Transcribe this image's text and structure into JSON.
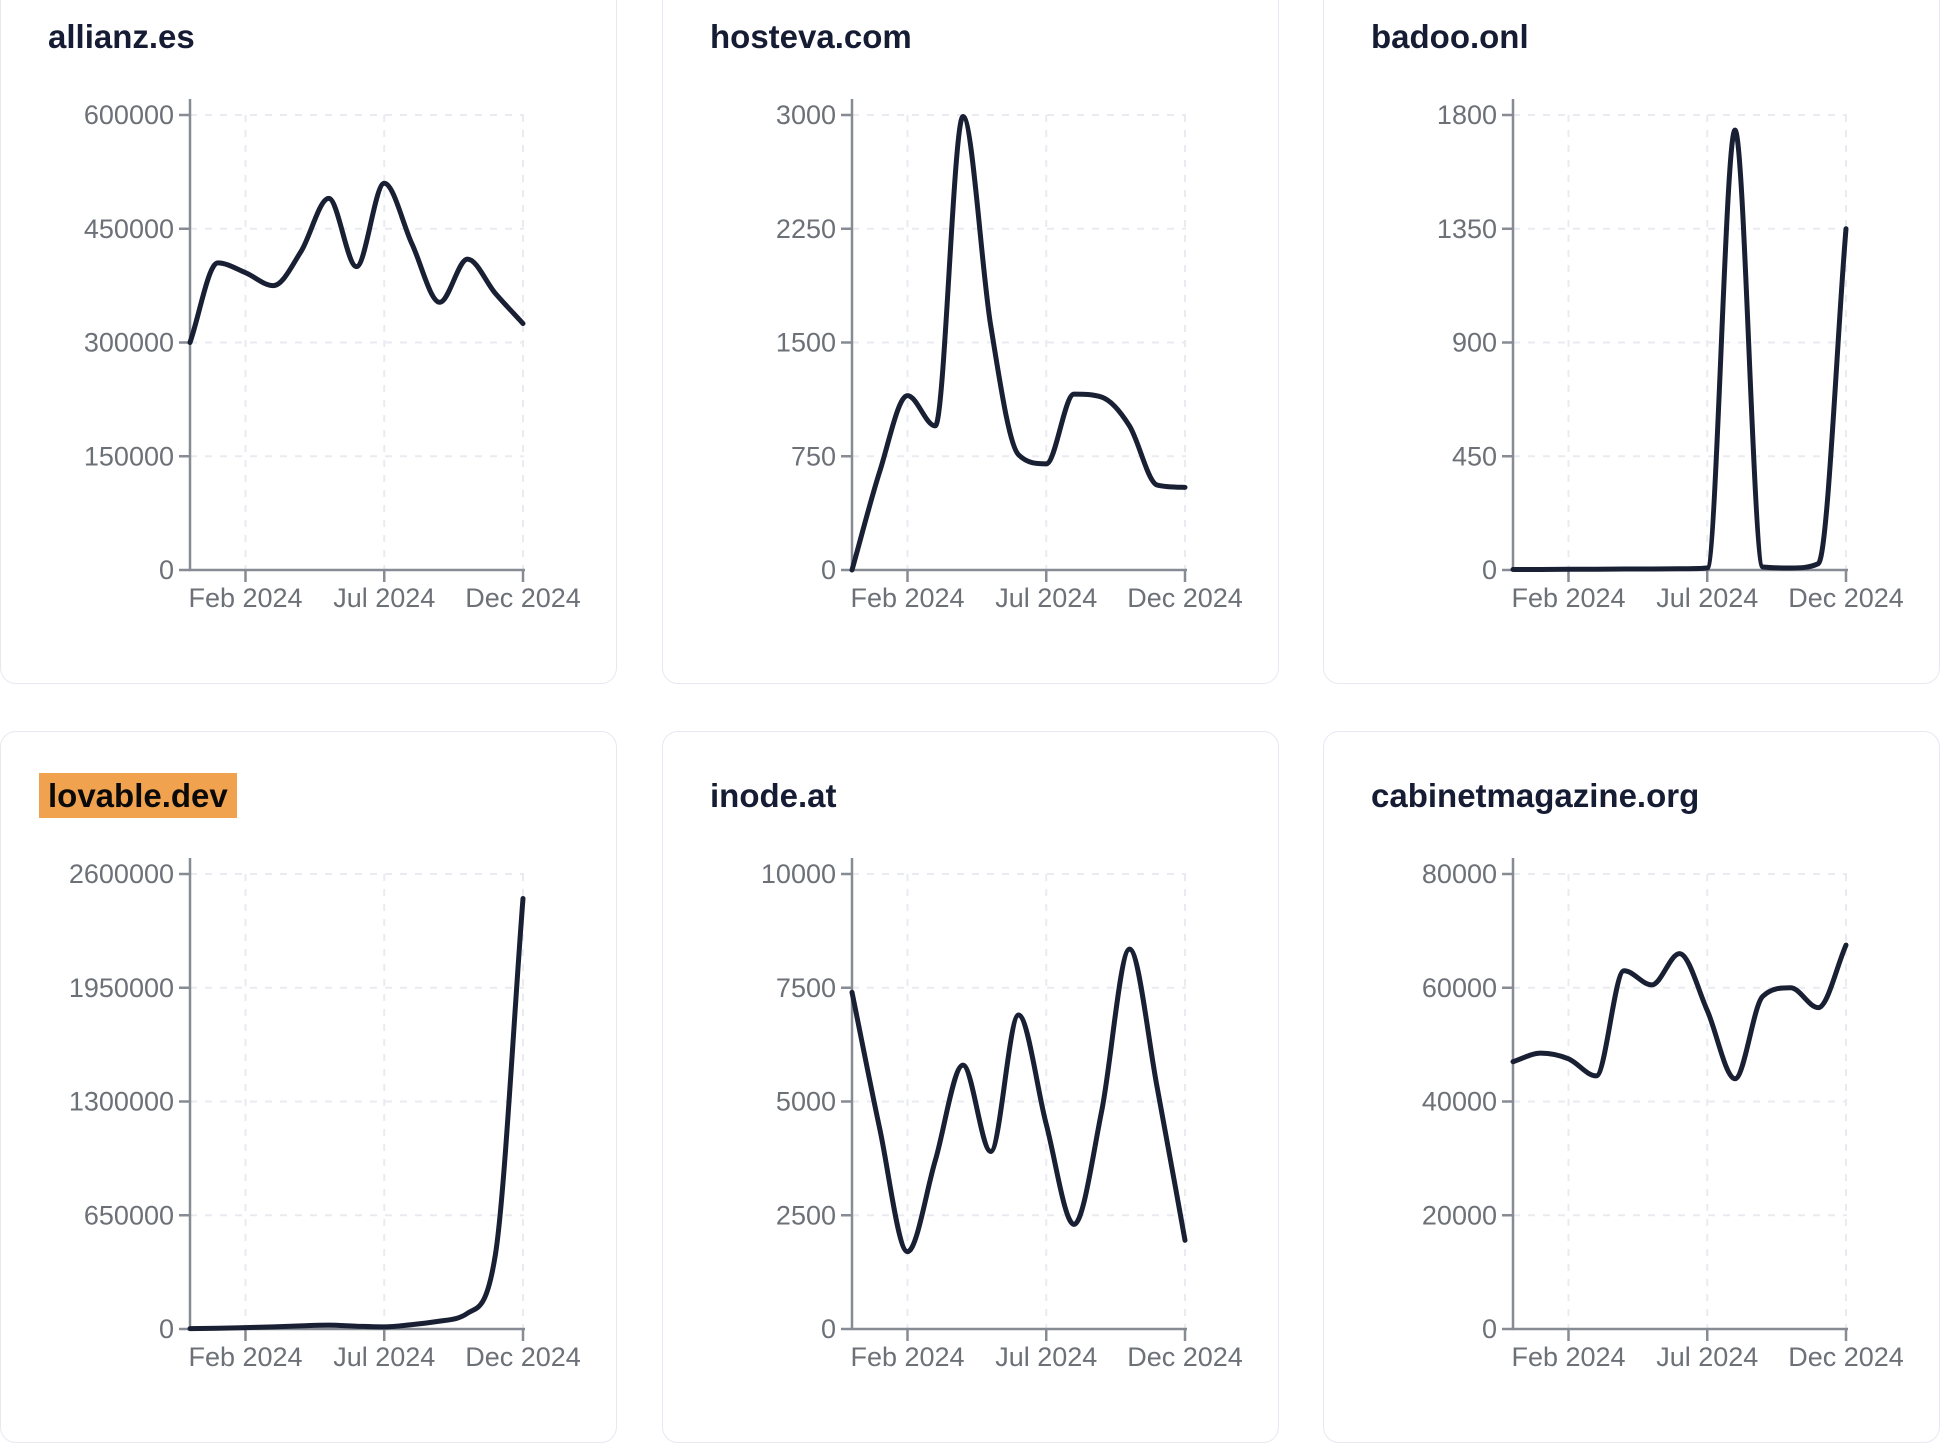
{
  "page": {
    "background": "#ffffff"
  },
  "theme": {
    "line_color": "#1a2033",
    "title_color": "#151c33",
    "tick_label_color": "#6c7077",
    "axis_color": "#878b93",
    "grid_color": "#e9ebf1",
    "card_border_color": "#e7e9f2",
    "highlight_color": "#f0a24e",
    "highlight_text_color": "#0a0a0a"
  },
  "x_axis": {
    "tick_labels": [
      "Feb 2024",
      "Jul 2024",
      "Dec 2024"
    ],
    "tick_month_indices": [
      2,
      7,
      12
    ]
  },
  "x_months": [
    "Dec 2023",
    "Jan 2024",
    "Feb 2024",
    "Mar 2024",
    "Apr 2024",
    "May 2024",
    "Jun 2024",
    "Jul 2024",
    "Aug 2024",
    "Sep 2024",
    "Oct 2024",
    "Nov 2024",
    "Dec 2024"
  ],
  "chart_data": [
    {
      "type": "line",
      "title": "allianz.es",
      "title_highlighted": false,
      "x_tick_labels": [
        "Feb 2024",
        "Jul 2024",
        "Dec 2024"
      ],
      "y_ticks": [
        0,
        150000,
        300000,
        450000,
        600000
      ],
      "ylim": [
        0,
        600000
      ],
      "grid": "dashed",
      "values": [
        300000,
        405000,
        392000,
        375000,
        420000,
        490000,
        400000,
        510000,
        430000,
        353000,
        410000,
        365000,
        325000
      ]
    },
    {
      "type": "line",
      "title": "hosteva.com",
      "title_highlighted": false,
      "x_tick_labels": [
        "Feb 2024",
        "Jul 2024",
        "Dec 2024"
      ],
      "y_ticks": [
        0,
        750,
        1500,
        2250,
        3000
      ],
      "ylim": [
        0,
        3000
      ],
      "grid": "dashed",
      "values": [
        0,
        650,
        1150,
        950,
        2990,
        1610,
        760,
        700,
        1160,
        1140,
        950,
        560,
        545
      ]
    },
    {
      "type": "line",
      "title": "badoo.onl",
      "title_highlighted": false,
      "x_tick_labels": [
        "Feb 2024",
        "Jul 2024",
        "Dec 2024"
      ],
      "y_ticks": [
        0,
        450,
        900,
        1350,
        1800
      ],
      "ylim": [
        0,
        1800
      ],
      "grid": "dashed",
      "values": [
        2,
        2,
        3,
        3,
        4,
        4,
        5,
        8,
        1740,
        12,
        8,
        25,
        1350
      ]
    },
    {
      "type": "line",
      "title": "lovable.dev",
      "title_highlighted": true,
      "x_tick_labels": [
        "Feb 2024",
        "Jul 2024",
        "Dec 2024"
      ],
      "y_ticks": [
        0,
        650000,
        1300000,
        1950000,
        2600000
      ],
      "ylim": [
        0,
        2600000
      ],
      "grid": "dashed",
      "values": [
        2000,
        4000,
        8000,
        12000,
        18000,
        22000,
        16000,
        12000,
        25000,
        45000,
        90000,
        420000,
        2460000
      ]
    },
    {
      "type": "line",
      "title": "inode.at",
      "title_highlighted": false,
      "x_tick_labels": [
        "Feb 2024",
        "Jul 2024",
        "Dec 2024"
      ],
      "y_ticks": [
        0,
        2500,
        5000,
        7500,
        10000
      ],
      "ylim": [
        0,
        10000
      ],
      "grid": "dashed",
      "values": [
        7400,
        4400,
        1700,
        3700,
        5800,
        3900,
        6900,
        4500,
        2300,
        4800,
        8350,
        5300,
        1950
      ]
    },
    {
      "type": "line",
      "title": "cabinetmagazine.org",
      "title_highlighted": false,
      "x_tick_labels": [
        "Feb 2024",
        "Jul 2024",
        "Dec 2024"
      ],
      "y_ticks": [
        0,
        20000,
        40000,
        60000,
        80000
      ],
      "ylim": [
        0,
        80000
      ],
      "grid": "dashed",
      "values": [
        47000,
        48500,
        47500,
        44500,
        63000,
        60500,
        66000,
        56000,
        44000,
        58500,
        60000,
        56500,
        67500
      ]
    }
  ]
}
